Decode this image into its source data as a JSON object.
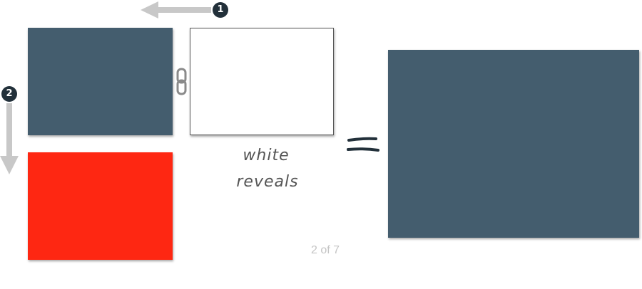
{
  "steps": {
    "step1": "1",
    "step2": "2"
  },
  "annotation": {
    "line1": "white",
    "line2": "reveals"
  },
  "pager": {
    "indicator": "2 of 7"
  },
  "colors": {
    "slate": "#445d6e",
    "red": "#fe2712",
    "white": "#ffffff",
    "arrow": "#c8c8c8",
    "badge": "#22303a",
    "equals": "#22303a"
  },
  "icons": {
    "chain": "link-icon",
    "equals": "equals-icon",
    "arrow_left": "arrow-left-icon",
    "arrow_down": "arrow-down-icon"
  }
}
